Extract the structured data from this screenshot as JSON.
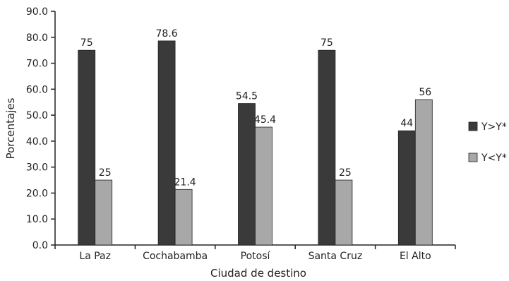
{
  "chart_data": {
    "type": "bar",
    "title": "",
    "xlabel": "Ciudad de destino",
    "ylabel": "Porcentajes",
    "ylim": [
      0,
      90
    ],
    "ytick_step": 10,
    "yticks": [
      "0.0",
      "10.0",
      "20.0",
      "30.0",
      "40.0",
      "50.0",
      "60.0",
      "70.0",
      "80.0",
      "90.0"
    ],
    "categories": [
      "La Paz",
      "Cochabamba",
      "Potosí",
      "Santa Cruz",
      "El Alto"
    ],
    "series": [
      {
        "name": "Y>Y*",
        "color": "#3a3a3a",
        "values": [
          75,
          78.6,
          54.5,
          75,
          44
        ],
        "labels": [
          "75",
          "78.6",
          "54.5",
          "75",
          "44"
        ]
      },
      {
        "name": "Y<Y*",
        "color": "#a8a8a8",
        "values": [
          25,
          21.4,
          45.4,
          25,
          56
        ],
        "labels": [
          "25",
          "21.4",
          "45.4",
          "25",
          "56"
        ]
      }
    ],
    "legend_position": "right",
    "grid": false
  }
}
